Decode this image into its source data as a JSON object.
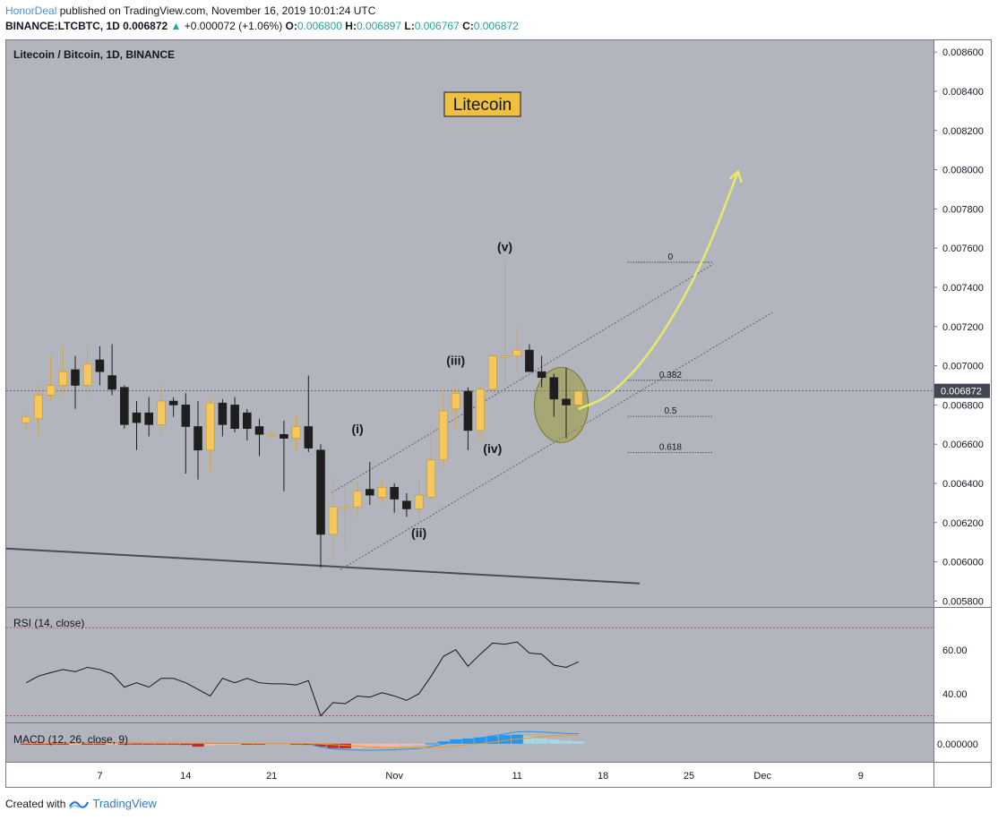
{
  "header": {
    "author": "HonorDeal",
    "published": "published on TradingView.com, November 16, 2019 10:01:24 UTC",
    "symbol": "BINANCE:LTCBTC, 1D",
    "last": "0.006872",
    "change_arrow": "▲",
    "change": "+0.000072 (+1.06%)",
    "o_label": "O:",
    "o": "0.006800",
    "h_label": "H:",
    "h": "0.006897",
    "l_label": "L:",
    "l": "0.006767",
    "c_label": "C:",
    "c": "0.006872"
  },
  "footer": {
    "created_with": "Created with",
    "brand": "TradingView",
    "logo_icon": "tradingview-logo-icon"
  },
  "colors": {
    "pane_bg": "#b2b5be",
    "up_candle": "#f5c85e",
    "down_candle": "#1e1e1e",
    "price_tag": "#434651",
    "arrow": "#e8e86a",
    "ellipse": "#9a9a2a",
    "rsi_band": "#d32f2f",
    "macd_line": "#2196f3",
    "signal_line": "#ff9800"
  },
  "chart_data": [
    {
      "type": "candlestick",
      "title": "Litecoin / Bitcoin, 1D, BINANCE",
      "annotation_box": "Litecoin",
      "ylim": [
        0.00577,
        0.00866
      ],
      "y_ticks": [
        "0.008600",
        "0.008400",
        "0.008200",
        "0.008000",
        "0.007800",
        "0.007600",
        "0.007400",
        "0.007200",
        "0.007000",
        "0.006800",
        "0.006600",
        "0.006400",
        "0.006200",
        "0.006000",
        "0.005800"
      ],
      "x_ticks": [
        {
          "label": "7",
          "day": 7
        },
        {
          "label": "14",
          "day": 14
        },
        {
          "label": "21",
          "day": 21
        },
        {
          "label": "Nov",
          "day": 31
        },
        {
          "label": "11",
          "day": 41
        },
        {
          "label": "18",
          "day": 48
        },
        {
          "label": "25",
          "day": 55
        },
        {
          "label": "Dec",
          "day": 61
        },
        {
          "label": "9",
          "day": 69
        }
      ],
      "last_price_label": "0.006872",
      "candles": [
        {
          "day": 1,
          "o": 0.00671,
          "h": 0.00676,
          "l": 0.00667,
          "c": 0.00674
        },
        {
          "day": 2,
          "o": 0.00673,
          "h": 0.0069,
          "l": 0.00664,
          "c": 0.00685
        },
        {
          "day": 3,
          "o": 0.00685,
          "h": 0.00705,
          "l": 0.00682,
          "c": 0.0069
        },
        {
          "day": 4,
          "o": 0.0069,
          "h": 0.0071,
          "l": 0.00685,
          "c": 0.00697
        },
        {
          "day": 5,
          "o": 0.00698,
          "h": 0.00705,
          "l": 0.00678,
          "c": 0.0069
        },
        {
          "day": 6,
          "o": 0.0069,
          "h": 0.0071,
          "l": 0.00684,
          "c": 0.00701
        },
        {
          "day": 7,
          "o": 0.00703,
          "h": 0.0071,
          "l": 0.0069,
          "c": 0.00697
        },
        {
          "day": 8,
          "o": 0.00695,
          "h": 0.00711,
          "l": 0.00685,
          "c": 0.00688
        },
        {
          "day": 9,
          "o": 0.00689,
          "h": 0.0069,
          "l": 0.00668,
          "c": 0.0067
        },
        {
          "day": 10,
          "o": 0.00676,
          "h": 0.00682,
          "l": 0.00657,
          "c": 0.00671
        },
        {
          "day": 11,
          "o": 0.00676,
          "h": 0.00684,
          "l": 0.00664,
          "c": 0.0067
        },
        {
          "day": 12,
          "o": 0.0067,
          "h": 0.0069,
          "l": 0.00665,
          "c": 0.00682
        },
        {
          "day": 13,
          "o": 0.00682,
          "h": 0.00684,
          "l": 0.00674,
          "c": 0.0068
        },
        {
          "day": 14,
          "o": 0.0068,
          "h": 0.00686,
          "l": 0.00645,
          "c": 0.00669
        },
        {
          "day": 15,
          "o": 0.00669,
          "h": 0.00682,
          "l": 0.00642,
          "c": 0.00657
        },
        {
          "day": 16,
          "o": 0.00657,
          "h": 0.00684,
          "l": 0.00646,
          "c": 0.00681
        },
        {
          "day": 17,
          "o": 0.00681,
          "h": 0.00683,
          "l": 0.00664,
          "c": 0.0067
        },
        {
          "day": 18,
          "o": 0.0068,
          "h": 0.00684,
          "l": 0.00666,
          "c": 0.00668
        },
        {
          "day": 19,
          "o": 0.00676,
          "h": 0.00678,
          "l": 0.00662,
          "c": 0.00668
        },
        {
          "day": 20,
          "o": 0.00669,
          "h": 0.00673,
          "l": 0.00654,
          "c": 0.00665
        },
        {
          "day": 21,
          "o": 0.00665,
          "h": 0.00666,
          "l": 0.00663,
          "c": 0.00665
        },
        {
          "day": 22,
          "o": 0.00665,
          "h": 0.00672,
          "l": 0.00636,
          "c": 0.00663
        },
        {
          "day": 23,
          "o": 0.00663,
          "h": 0.00675,
          "l": 0.00657,
          "c": 0.00669
        },
        {
          "day": 24,
          "o": 0.00669,
          "h": 0.00695,
          "l": 0.00656,
          "c": 0.00658
        },
        {
          "day": 25,
          "o": 0.00657,
          "h": 0.0066,
          "l": 0.00597,
          "c": 0.00614
        },
        {
          "day": 26,
          "o": 0.00614,
          "h": 0.00643,
          "l": 0.00601,
          "c": 0.00628
        },
        {
          "day": 27,
          "o": 0.00628,
          "h": 0.00638,
          "l": 0.00607,
          "c": 0.00628
        },
        {
          "day": 28,
          "o": 0.00628,
          "h": 0.00641,
          "l": 0.00623,
          "c": 0.00636
        },
        {
          "day": 29,
          "o": 0.00637,
          "h": 0.00651,
          "l": 0.00629,
          "c": 0.00634
        },
        {
          "day": 30,
          "o": 0.00633,
          "h": 0.00641,
          "l": 0.0063,
          "c": 0.00638
        },
        {
          "day": 31,
          "o": 0.00638,
          "h": 0.0064,
          "l": 0.00625,
          "c": 0.00632
        },
        {
          "day": 32,
          "o": 0.00631,
          "h": 0.00635,
          "l": 0.00623,
          "c": 0.00627
        },
        {
          "day": 33,
          "o": 0.00627,
          "h": 0.00642,
          "l": 0.00622,
          "c": 0.00634
        },
        {
          "day": 34,
          "o": 0.00633,
          "h": 0.00667,
          "l": 0.00632,
          "c": 0.00652
        },
        {
          "day": 35,
          "o": 0.00652,
          "h": 0.00688,
          "l": 0.00648,
          "c": 0.00677
        },
        {
          "day": 36,
          "o": 0.00678,
          "h": 0.0069,
          "l": 0.00668,
          "c": 0.00686
        },
        {
          "day": 37,
          "o": 0.00687,
          "h": 0.00689,
          "l": 0.00657,
          "c": 0.00667
        },
        {
          "day": 38,
          "o": 0.00667,
          "h": 0.0069,
          "l": 0.00662,
          "c": 0.00688
        },
        {
          "day": 39,
          "o": 0.00688,
          "h": 0.00706,
          "l": 0.00686,
          "c": 0.00705
        },
        {
          "day": 40,
          "o": 0.00705,
          "h": 0.00754,
          "l": 0.00691,
          "c": 0.00705
        },
        {
          "day": 41,
          "o": 0.00705,
          "h": 0.00719,
          "l": 0.00697,
          "c": 0.00708
        },
        {
          "day": 42,
          "o": 0.00708,
          "h": 0.00711,
          "l": 0.00697,
          "c": 0.00697
        },
        {
          "day": 43,
          "o": 0.00697,
          "h": 0.00705,
          "l": 0.00689,
          "c": 0.00694
        },
        {
          "day": 44,
          "o": 0.00694,
          "h": 0.00696,
          "l": 0.00674,
          "c": 0.00683
        },
        {
          "day": 45,
          "o": 0.00683,
          "h": 0.00699,
          "l": 0.00663,
          "c": 0.0068
        },
        {
          "day": 46,
          "o": 0.0068,
          "h": 0.0069,
          "l": 0.00677,
          "c": 0.00687
        }
      ],
      "wave_labels": [
        {
          "text": "(i)",
          "day": 28,
          "price": 0.006655
        },
        {
          "text": "(ii)",
          "day": 33,
          "price": 0.006125
        },
        {
          "text": "(iii)",
          "day": 36,
          "price": 0.007005
        },
        {
          "text": "(iv)",
          "day": 39,
          "price": 0.006555
        },
        {
          "text": "(v)",
          "day": 40,
          "price": 0.007585
        }
      ],
      "fibonacci": [
        {
          "label": "0",
          "price": 0.007528
        },
        {
          "label": "0.382",
          "price": 0.006926
        },
        {
          "label": "0.5",
          "price": 0.006742
        },
        {
          "label": "0.618",
          "price": 0.006557
        }
      ],
      "fib_range_days": [
        50,
        57
      ],
      "channel_lines": [
        {
          "from": {
            "day": 25.9,
            "price": 0.006353
          },
          "to": {
            "day": 57,
            "price": 0.007519
          }
        },
        {
          "from": {
            "day": 26.6,
            "price": 0.00596
          },
          "to": {
            "day": 61.8,
            "price": 0.007272
          }
        }
      ],
      "support_line": {
        "from": {
          "day": 0,
          "price": 0.006068
        },
        "to": {
          "day": 51,
          "price": 0.00589
        }
      },
      "projection_arrow": {
        "points": [
          {
            "day": 46,
            "price": 0.00678
          },
          {
            "day": 48.5,
            "price": 0.00684
          },
          {
            "day": 52,
            "price": 0.00707
          },
          {
            "day": 56,
            "price": 0.0075
          },
          {
            "day": 59,
            "price": 0.00799
          }
        ]
      },
      "highlight_ellipse": {
        "day": 44.6,
        "price": 0.0068
      }
    },
    {
      "type": "line",
      "title": "RSI (14, close)",
      "ylim": [
        27,
        79
      ],
      "y_ticks": [
        "60.00",
        "40.00"
      ],
      "bands": [
        70,
        30
      ],
      "x": [
        1,
        2,
        3,
        4,
        5,
        6,
        7,
        8,
        9,
        10,
        11,
        12,
        13,
        14,
        15,
        16,
        17,
        18,
        19,
        20,
        21,
        22,
        23,
        24,
        25,
        26,
        27,
        28,
        29,
        30,
        31,
        32,
        33,
        34,
        35,
        36,
        37,
        38,
        39,
        40,
        41,
        42,
        43,
        44,
        45,
        46
      ],
      "values": [
        45,
        48,
        49.6,
        51,
        50,
        52,
        51,
        49,
        43,
        45,
        43,
        47,
        47,
        45,
        42,
        39,
        47,
        45,
        47,
        45,
        44.5,
        44.5,
        44,
        46,
        30,
        36,
        35.5,
        39,
        38.5,
        40.5,
        39,
        37,
        40,
        48,
        57,
        60,
        52.5,
        58,
        63,
        62.5,
        63.5,
        58.5,
        58,
        53,
        52,
        54.5
      ]
    },
    {
      "type": "histogram+line",
      "title": "MACD (12, 26, close, 9)",
      "ylim": [
        -0.000228,
        0.000258
      ],
      "y_ticks": [
        "0.000000"
      ],
      "x": [
        1,
        2,
        3,
        4,
        5,
        6,
        7,
        8,
        9,
        10,
        11,
        12,
        13,
        14,
        15,
        16,
        17,
        18,
        19,
        20,
        21,
        22,
        23,
        24,
        25,
        26,
        27,
        28,
        29,
        30,
        31,
        32,
        33,
        34,
        35,
        36,
        37,
        38,
        39,
        40,
        41,
        42,
        43,
        44,
        45,
        46
      ],
      "histogram": [
        -3e-06,
        -4e-06,
        -4e-06,
        -5e-06,
        -3e-06,
        -4e-06,
        -4e-06,
        -3e-06,
        -6e-06,
        -6e-06,
        -6e-06,
        -7e-06,
        -7e-06,
        -1.5e-05,
        -3.7e-05,
        -2.2e-05,
        -1.3e-05,
        -9e-06,
        -9e-06,
        -1e-05,
        -8e-06,
        -7e-06,
        -9e-06,
        -1.5e-05,
        -3.5e-05,
        -5.5e-05,
        -5.8e-05,
        -5.7e-05,
        -5e-05,
        -4.5e-05,
        -4e-05,
        -3e-05,
        -2e-05,
        5e-06,
        3e-05,
        5.5e-05,
        6.5e-05,
        8e-05,
        9.5e-05,
        0.000108,
        0.000114,
        9.2e-05,
        7e-05,
        5.2e-05,
        4e-05,
        3e-05
      ],
      "macd": [
        1e-05,
        1e-05,
        1e-05,
        1.2e-05,
        1.2e-05,
        1.3e-05,
        1.3e-05,
        1.4e-05,
        1.2e-05,
        1e-05,
        8e-06,
        9e-06,
        8e-06,
        6e-06,
        4e-06,
        4e-06,
        3e-06,
        3e-06,
        3e-06,
        2e-06,
        1e-06,
        1e-06,
        1e-06,
        1e-06,
        -4e-05,
        -6.5e-05,
        -7.5e-05,
        -8e-05,
        -8.2e-05,
        -8e-05,
        -7.5e-05,
        -7e-05,
        -6e-05,
        -3.5e-05,
        -5e-06,
        2.5e-05,
        5e-05,
        7.5e-05,
        0.0001,
        0.000125,
        0.00015,
        0.000155,
        0.000148,
        0.00014,
        0.00013,
        0.000128
      ],
      "signal": [
        1e-05,
        1e-05,
        1e-05,
        1.1e-05,
        1.1e-05,
        1.2e-05,
        1.2e-05,
        1.2e-05,
        1.2e-05,
        1.2e-05,
        1.1e-05,
        1.1e-05,
        1e-05,
        9e-06,
        8e-06,
        7e-06,
        6e-06,
        6e-06,
        5e-06,
        5e-06,
        4e-06,
        4e-06,
        3e-06,
        3e-06,
        -3e-06,
        -1.2e-05,
        -2e-05,
        -3e-05,
        -4e-05,
        -4.5e-05,
        -5e-05,
        -5.2e-05,
        -5.2e-05,
        -4.8e-05,
        -4e-05,
        -2.8e-05,
        -1.2e-05,
        3e-06,
        2e-05,
        4e-05,
        6e-05,
        7.5e-05,
        8.8e-05,
        9.8e-05,
        0.000105,
        0.00011
      ]
    }
  ]
}
